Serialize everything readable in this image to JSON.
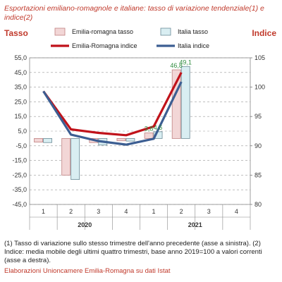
{
  "title": "Esportazioni emiliano-romagnole e italiane: tasso di variazione tendenziale(1) e indice(2)",
  "left_axis_title": "Tasso",
  "right_axis_title": "Indice",
  "notes": "(1) Tasso di variazione sullo stesso trimestre dell'anno precedente (asse a sinistra). (2) Indice: media mobile degli ultimi quattro trimestri, base anno 2019=100 a valori correnti (asse a destra).",
  "source": "Elaborazioni Unioncamere Emilia-Romagna su dati Istat",
  "chart_data": {
    "type": "bar",
    "categories": [
      "1",
      "2",
      "3",
      "4",
      "1",
      "2",
      "3",
      "4"
    ],
    "year_groups": [
      {
        "label": "2020",
        "span": [
          0,
          3
        ]
      },
      {
        "label": "2021",
        "span": [
          4,
          7
        ]
      }
    ],
    "left_axis": {
      "min": -45,
      "max": 55,
      "ticks": [
        "55,0",
        "45,0",
        "35,0",
        "25,0",
        "15,0",
        "5,0",
        "-5,0",
        "-15,0",
        "-25,0",
        "-35,0",
        "-45,0"
      ]
    },
    "right_axis": {
      "min": 80,
      "max": 105,
      "ticks": [
        "105",
        "100",
        "95",
        "90",
        "85",
        "80"
      ]
    },
    "series": [
      {
        "name": "Emilia-romagna tasso",
        "kind": "bar",
        "axis": "left",
        "color": "#f2d6d6",
        "border": "#c08080",
        "values": [
          -2.5,
          -25.0,
          -2.8,
          -1.6,
          3.8,
          46.8,
          null,
          null
        ]
      },
      {
        "name": "Italia tasso",
        "kind": "bar",
        "axis": "left",
        "color": "#d9eef2",
        "border": "#6a8a96",
        "values": [
          -2.8,
          -28.0,
          -4.5,
          -1.8,
          4.6,
          49.1,
          null,
          null
        ]
      },
      {
        "name": "Emilia-Romagna indice",
        "kind": "line",
        "axis": "right",
        "color": "#c0121a",
        "values": [
          99.3,
          92.8,
          92.2,
          91.8,
          93.3,
          102.5,
          null,
          null
        ]
      },
      {
        "name": "Italia indice",
        "kind": "line",
        "axis": "right",
        "color": "#3c5e92",
        "values": [
          99.3,
          91.9,
          90.8,
          90.2,
          91.2,
          100.9,
          null,
          null
        ]
      }
    ],
    "data_labels": [
      {
        "series": 0,
        "index": 4,
        "text": "3,8"
      },
      {
        "series": 1,
        "index": 4,
        "text": "4,6"
      },
      {
        "series": 0,
        "index": 5,
        "text": "46,8"
      },
      {
        "series": 1,
        "index": 5,
        "text": "49,1"
      }
    ],
    "legend": {
      "placement": "top"
    },
    "grid": "horizontal-dashed"
  }
}
